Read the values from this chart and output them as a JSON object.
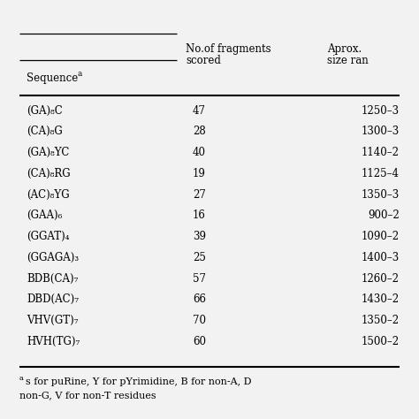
{
  "sequences": [
    "(GA)₈C",
    "(CA)₈G",
    "(GA)₈YC",
    "(CA)₈RG",
    "(AC)₈YG",
    "(GAA)₆",
    "(GGAT)₄",
    "(GGAGA)₃",
    "BDB(CA)₇",
    "DBD(AC)₇",
    "VHV(GT)₇",
    "HVH(TG)₇"
  ],
  "fragments": [
    "47",
    "28",
    "40",
    "19",
    "27",
    "16",
    "39",
    "25",
    "57",
    "66",
    "70",
    "60"
  ],
  "sizes": [
    "1250–3",
    "1300–3",
    "1140–2",
    "1125–4",
    "1350–3",
    "900–2",
    "1090–2",
    "1400–3",
    "1260–2",
    "1430–2",
    "1350–2",
    "1500–2"
  ],
  "header1a": "No.of fragments",
  "header1b": "scored",
  "header2a": "Aprox.",
  "header2b": "size ran",
  "seq_label": "Sequence",
  "seq_superscript": "a",
  "footnote_line1": "s for puRine, Y for pYrimidine, B for non-A, D",
  "footnote_line2": "non-G, V for non-T residues",
  "footnote_super": "a",
  "fontsize": 8.5,
  "bg_color": "#f2f2f2",
  "lw_thick": 1.5,
  "lw_thin": 0.9
}
